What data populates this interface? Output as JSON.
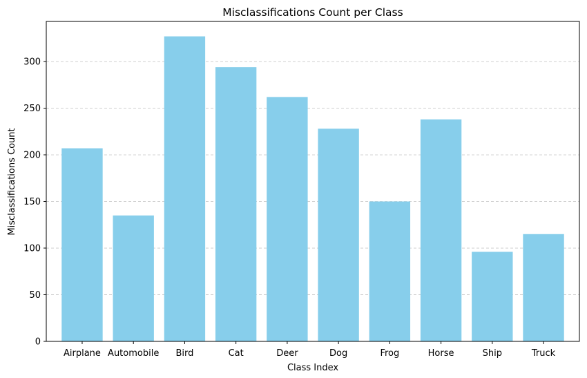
{
  "chart_data": {
    "type": "bar",
    "title": "Misclassifications Count per Class",
    "xlabel": "Class Index",
    "ylabel": "Misclassifications Count",
    "categories": [
      "Airplane",
      "Automobile",
      "Bird",
      "Cat",
      "Deer",
      "Dog",
      "Frog",
      "Horse",
      "Ship",
      "Truck"
    ],
    "values": [
      207,
      135,
      327,
      294,
      262,
      228,
      150,
      238,
      96,
      115
    ],
    "ylim": [
      0,
      343
    ],
    "yticks": [
      0,
      50,
      100,
      150,
      200,
      250,
      300
    ],
    "ytick_labels": [
      "0",
      "50",
      "100",
      "150",
      "200",
      "250",
      "300"
    ],
    "grid": "y-dashed",
    "legend": "none",
    "colors": {
      "bar": "#87ceeb",
      "grid": "#c8c8c8",
      "axis": "#000000"
    }
  }
}
